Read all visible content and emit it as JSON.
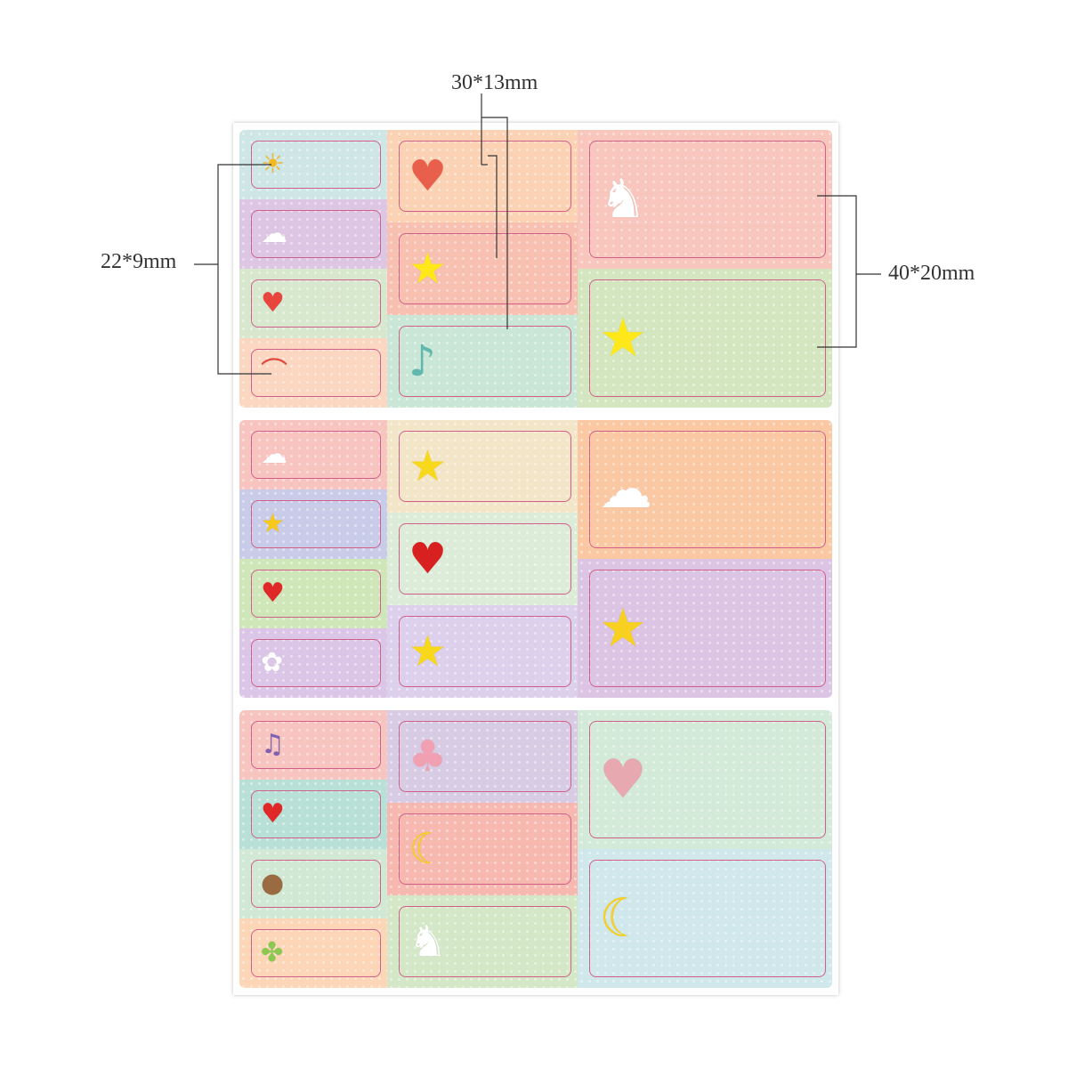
{
  "dimensions": {
    "small": "22*9mm",
    "medium": "30*13mm",
    "large": "40*20mm"
  },
  "label_border_color": "#d0608a",
  "panels": [
    {
      "left": [
        {
          "bg": "#cfe6e6",
          "icon": "sun-icon",
          "glyph": "☀",
          "color": "#f5b820"
        },
        {
          "bg": "#dcc6e4",
          "icon": "cloud-icon",
          "glyph": "☁",
          "color": "#ffffff"
        },
        {
          "bg": "#d7e8cf",
          "icon": "hearts-icon",
          "glyph": "♥",
          "color": "#e8453c"
        },
        {
          "bg": "#fbd6c0",
          "icon": "rainbow-icon",
          "glyph": "⌒",
          "color": "#e2463a"
        }
      ],
      "mid": [
        {
          "bg": "#fbd2b4",
          "icon": "heart-face-icon",
          "glyph": "♥",
          "color": "#e8604c"
        },
        {
          "bg": "#f8c0b0",
          "icon": "star-icon",
          "glyph": "★",
          "color": "#ffe81a"
        },
        {
          "bg": "#c9e6d6",
          "icon": "bird-icon",
          "glyph": "♪",
          "color": "#5fb8b0"
        }
      ],
      "right": [
        {
          "bg": "#f8c6bc",
          "icon": "unicorn-icon",
          "glyph": "♞",
          "color": "#ffffff"
        },
        {
          "bg": "#d4e6c0",
          "icon": "star-rainbow-icon",
          "glyph": "★",
          "color": "#ffe81a"
        }
      ]
    },
    {
      "left": [
        {
          "bg": "#f8c4c0",
          "icon": "cloud-icon",
          "glyph": "☁",
          "color": "#ffffff"
        },
        {
          "bg": "#c8cce8",
          "icon": "star-icon",
          "glyph": "★",
          "color": "#f8c81a"
        },
        {
          "bg": "#cfe6b8",
          "icon": "heart-icon",
          "glyph": "♥",
          "color": "#e02828"
        },
        {
          "bg": "#dcc6e8",
          "icon": "bunny-icon",
          "glyph": "✿",
          "color": "#ffffff"
        }
      ],
      "mid": [
        {
          "bg": "#f3e6c8",
          "icon": "shooting-star-icon",
          "glyph": "★",
          "color": "#f8d81a"
        },
        {
          "bg": "#dcecd8",
          "icon": "flower-pot-icon",
          "glyph": "♥",
          "color": "#d82020"
        },
        {
          "bg": "#dcd0ec",
          "icon": "stars-icon",
          "glyph": "★",
          "color": "#f8d81a"
        }
      ],
      "right": [
        {
          "bg": "#fbc8a4",
          "icon": "girl-cloud-icon",
          "glyph": "☁",
          "color": "#ffffff"
        },
        {
          "bg": "#dcc4e4",
          "icon": "sleepy-star-icon",
          "glyph": "★",
          "color": "#f8d020"
        }
      ]
    },
    {
      "left": [
        {
          "bg": "#f7c4c0",
          "icon": "music-note-icon",
          "glyph": "♫",
          "color": "#8060b0"
        },
        {
          "bg": "#b8e0d6",
          "icon": "speech-heart-icon",
          "glyph": "♥",
          "color": "#e02828"
        },
        {
          "bg": "#d0e8d4",
          "icon": "bear-icon",
          "glyph": "●",
          "color": "#9a6a40"
        },
        {
          "bg": "#fdd6b8",
          "icon": "clover-icon",
          "glyph": "✤",
          "color": "#8ac850"
        }
      ],
      "mid": [
        {
          "bg": "#d8cce4",
          "icon": "owl-icon",
          "glyph": "♣",
          "color": "#f0a0b0"
        },
        {
          "bg": "#f7b8b0",
          "icon": "moon-icon",
          "glyph": "☾",
          "color": "#f8d020"
        },
        {
          "bg": "#d4e8c8",
          "icon": "unicorn-icon",
          "glyph": "♞",
          "color": "#ffffff"
        }
      ],
      "right": [
        {
          "bg": "#d4ead8",
          "icon": "elephant-icon",
          "glyph": "♥",
          "color": "#e8a8b0"
        },
        {
          "bg": "#d0e8ec",
          "icon": "moon-girl-icon",
          "glyph": "☾",
          "color": "#f8d020"
        }
      ]
    }
  ]
}
